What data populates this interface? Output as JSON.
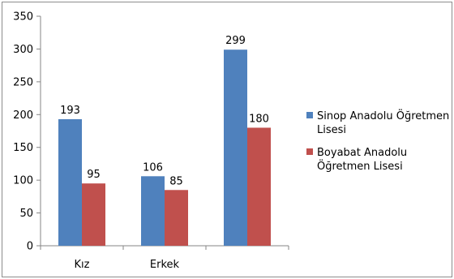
{
  "chart_data": {
    "type": "bar",
    "categories": [
      "Kız",
      "Erkek",
      ""
    ],
    "series": [
      {
        "name": "Sinop Anadolu Öğretmen Lisesi",
        "values": [
          193,
          106,
          299
        ],
        "color": "#4f81bd"
      },
      {
        "name": "Boyabat Anadolu Öğretmen Lisesi",
        "values": [
          95,
          85,
          180
        ],
        "color": "#c0504d"
      }
    ],
    "legend_lines": [
      [
        "Sinop Anadolu Öğretmen",
        "Lisesi"
      ],
      [
        "Boyabat Anadolu",
        "Öğretmen Lisesi"
      ]
    ],
    "ylim": [
      0,
      350
    ],
    "yticks": [
      0,
      50,
      100,
      150,
      200,
      250,
      300,
      350
    ],
    "legend": "right",
    "grid": false
  }
}
